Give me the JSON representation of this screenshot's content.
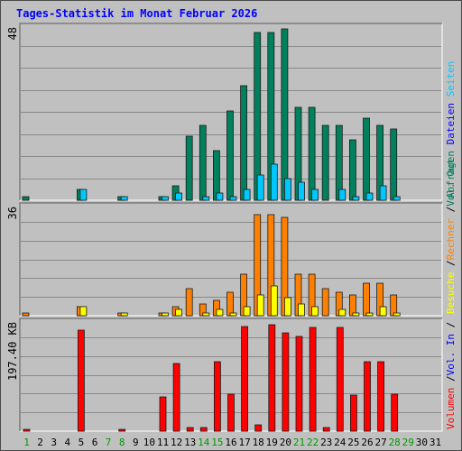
{
  "chart_data": {
    "type": "bar",
    "title": "Tages-Statistik im Monat Februar 2026",
    "categories": [
      "1",
      "2",
      "3",
      "4",
      "5",
      "6",
      "7",
      "8",
      "9",
      "10",
      "11",
      "12",
      "13",
      "14",
      "15",
      "16",
      "17",
      "18",
      "19",
      "20",
      "21",
      "22",
      "23",
      "24",
      "25",
      "26",
      "27",
      "28",
      "29",
      "30",
      "31"
    ],
    "weekend_days": [
      "1",
      "7",
      "8",
      "14",
      "15",
      "21",
      "22",
      "28",
      "29"
    ],
    "colors": {
      "title": "#0000ff",
      "weekday": "#000000",
      "weekend": "#009900",
      "anfragen": "#00805c",
      "dateien": "#00c8ff",
      "seiten": "#00e0ff",
      "besuche": "#ffff00",
      "rechner": "#ff8000",
      "volumen": "#ff0000",
      "plot_bg": "#c0c0c0",
      "grid": "#8a8a8a"
    },
    "panels": [
      {
        "name": "anfragen-panel",
        "scale_label": "48",
        "ylim": [
          0,
          48
        ],
        "legend": [
          {
            "text": "Anfragen",
            "color": "#00805c"
          },
          {
            "text": "Dateien",
            "color": "#0000ff"
          },
          {
            "text": "Seiten",
            "color": "#00c8ff"
          }
        ],
        "series": [
          {
            "name": "Anfragen",
            "color": "#00805c",
            "values": [
              1,
              0,
              0,
              0,
              3,
              0,
              0,
              1,
              0,
              0,
              1,
              4,
              18,
              21,
              14,
              25,
              32,
              47,
              47,
              48,
              26,
              26,
              21,
              21,
              17,
              23,
              21,
              20,
              0,
              0,
              0
            ]
          },
          {
            "name": "Dateien",
            "color": "#00c8ff",
            "values": [
              0,
              0,
              0,
              0,
              3,
              0,
              0,
              1,
              0,
              0,
              1,
              2,
              0,
              1,
              2,
              1,
              3,
              7,
              10,
              6,
              5,
              3,
              0,
              3,
              1,
              2,
              4,
              1,
              0,
              0,
              0
            ]
          }
        ]
      },
      {
        "name": "besuche-panel",
        "scale_label": "36",
        "ylim": [
          0,
          36
        ],
        "legend": [
          {
            "text": "Besuche",
            "color": "#ffff00"
          },
          {
            "text": "/",
            "color": "#000000"
          },
          {
            "text": "Rechner",
            "color": "#ff8000"
          },
          {
            "text": "/",
            "color": "#000000"
          },
          {
            "text": "Vol. Out",
            "color": "#00805c"
          }
        ],
        "series": [
          {
            "name": "Rechner",
            "color": "#ff8000",
            "values": [
              1,
              0,
              0,
              0,
              3,
              0,
              0,
              1,
              0,
              0,
              1,
              3,
              9,
              4,
              5,
              8,
              14,
              34,
              34,
              33,
              14,
              14,
              9,
              8,
              7,
              11,
              11,
              7,
              0,
              0,
              0
            ]
          },
          {
            "name": "Besuche",
            "color": "#ffff00",
            "values": [
              0,
              0,
              0,
              0,
              3,
              0,
              0,
              1,
              0,
              0,
              1,
              2,
              0,
              1,
              2,
              1,
              3,
              7,
              10,
              6,
              4,
              3,
              0,
              2,
              1,
              1,
              3,
              1,
              0,
              0,
              0
            ]
          }
        ]
      },
      {
        "name": "volumen-panel",
        "scale_label": "197.40 KB",
        "ylim": [
          0,
          197.4
        ],
        "legend": [
          {
            "text": "Volumen",
            "color": "#ff0000"
          },
          {
            "text": "/",
            "color": "#000000"
          },
          {
            "text": "Vol. In",
            "color": "#0000ff"
          },
          {
            "text": "/",
            "color": "#000000"
          }
        ],
        "series": [
          {
            "name": "Volumen",
            "color": "#ff0000",
            "values": [
              3,
              0,
              0,
              0,
              185,
              0,
              0,
              3,
              0,
              0,
              63,
              125,
              6,
              6,
              128,
              68,
              192,
              12,
              195,
              180,
              175,
              190,
              6,
              190,
              66,
              128,
              128,
              68,
              0,
              0,
              0
            ]
          }
        ]
      }
    ]
  }
}
